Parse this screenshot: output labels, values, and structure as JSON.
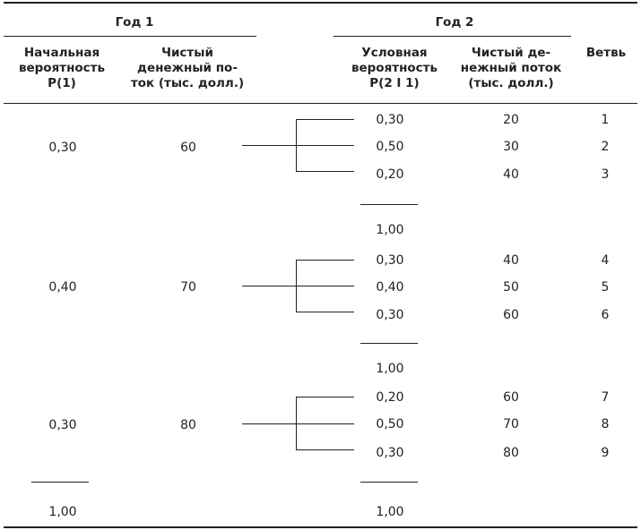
{
  "headers": {
    "year1": "Год 1",
    "year2": "Год 2",
    "initial_prob": "Начальная\nвероятность\nP(1)",
    "cash_flow_1": "Чистый\nденежный по-\nток (тыс. долл.)",
    "cond_prob": "Условная\nвероятность\nP(2 I 1)",
    "cash_flow_2": "Чистый де-\nнежный поток\n(тыс. долл.)",
    "branch": "Ветвь"
  },
  "groups": [
    {
      "prob1": "0,30",
      "cf1": "60",
      "rows": [
        {
          "prob2": "0,30",
          "cf2": "20",
          "branch": "1"
        },
        {
          "prob2": "0,50",
          "cf2": "30",
          "branch": "2"
        },
        {
          "prob2": "0,20",
          "cf2": "40",
          "branch": "3"
        }
      ],
      "subtotal": "1,00"
    },
    {
      "prob1": "0,40",
      "cf1": "70",
      "rows": [
        {
          "prob2": "0,30",
          "cf2": "40",
          "branch": "4"
        },
        {
          "prob2": "0,40",
          "cf2": "50",
          "branch": "5"
        },
        {
          "prob2": "0,30",
          "cf2": "60",
          "branch": "6"
        }
      ],
      "subtotal": "1,00"
    },
    {
      "prob1": "0,30",
      "cf1": "80",
      "rows": [
        {
          "prob2": "0,20",
          "cf2": "60",
          "branch": "7"
        },
        {
          "prob2": "0,50",
          "cf2": "70",
          "branch": "8"
        },
        {
          "prob2": "0,30",
          "cf2": "80",
          "branch": "9"
        }
      ],
      "subtotal": "1,00"
    }
  ],
  "totals": {
    "prob1": "1,00"
  }
}
